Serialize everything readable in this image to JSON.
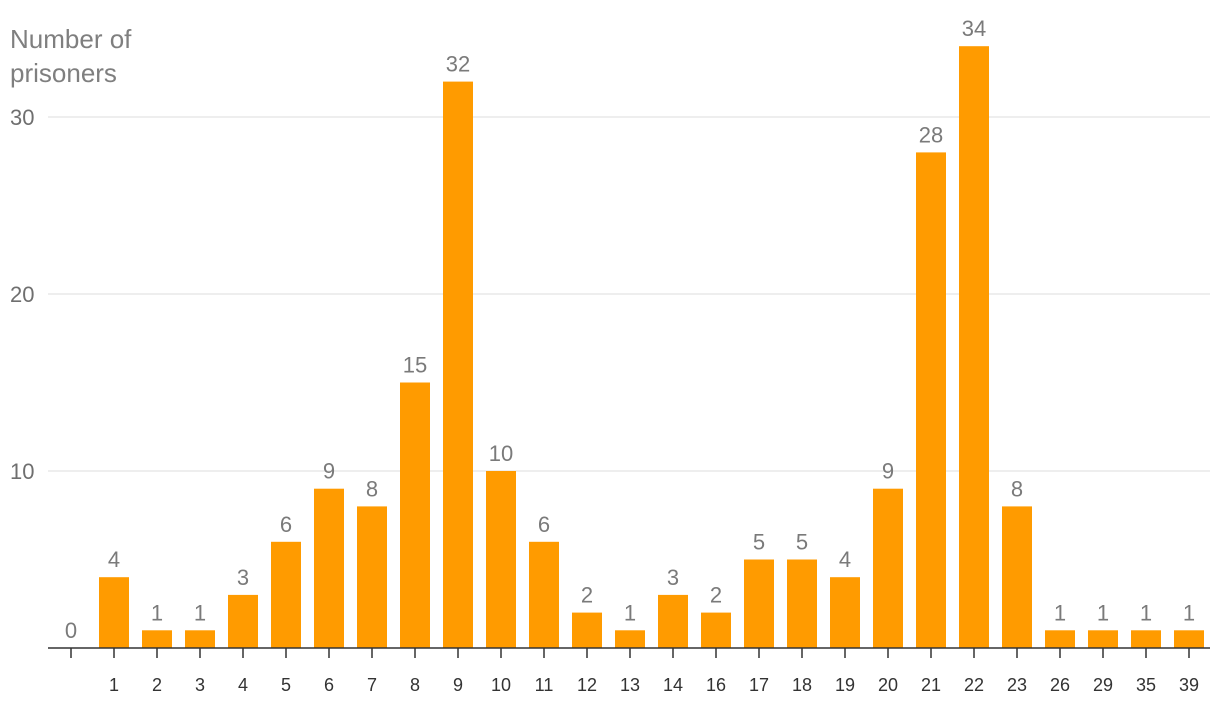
{
  "chart_data": {
    "type": "bar",
    "ylabel": "Number of prisoners",
    "ylim": [
      0,
      36
    ],
    "yticks": [
      10,
      20,
      30
    ],
    "grid": true,
    "bar_color": "#ff9b00",
    "categories": [
      "",
      "1",
      "2",
      "3",
      "4",
      "5",
      "6",
      "7",
      "8",
      "9",
      "10",
      "11",
      "12",
      "13",
      "14",
      "16",
      "17",
      "18",
      "19",
      "20",
      "21",
      "22",
      "23",
      "26",
      "29",
      "35",
      "39"
    ],
    "values": [
      0,
      4,
      1,
      1,
      3,
      6,
      9,
      8,
      15,
      32,
      10,
      6,
      2,
      1,
      3,
      2,
      5,
      5,
      4,
      9,
      28,
      34,
      8,
      1,
      1,
      1,
      1
    ]
  }
}
